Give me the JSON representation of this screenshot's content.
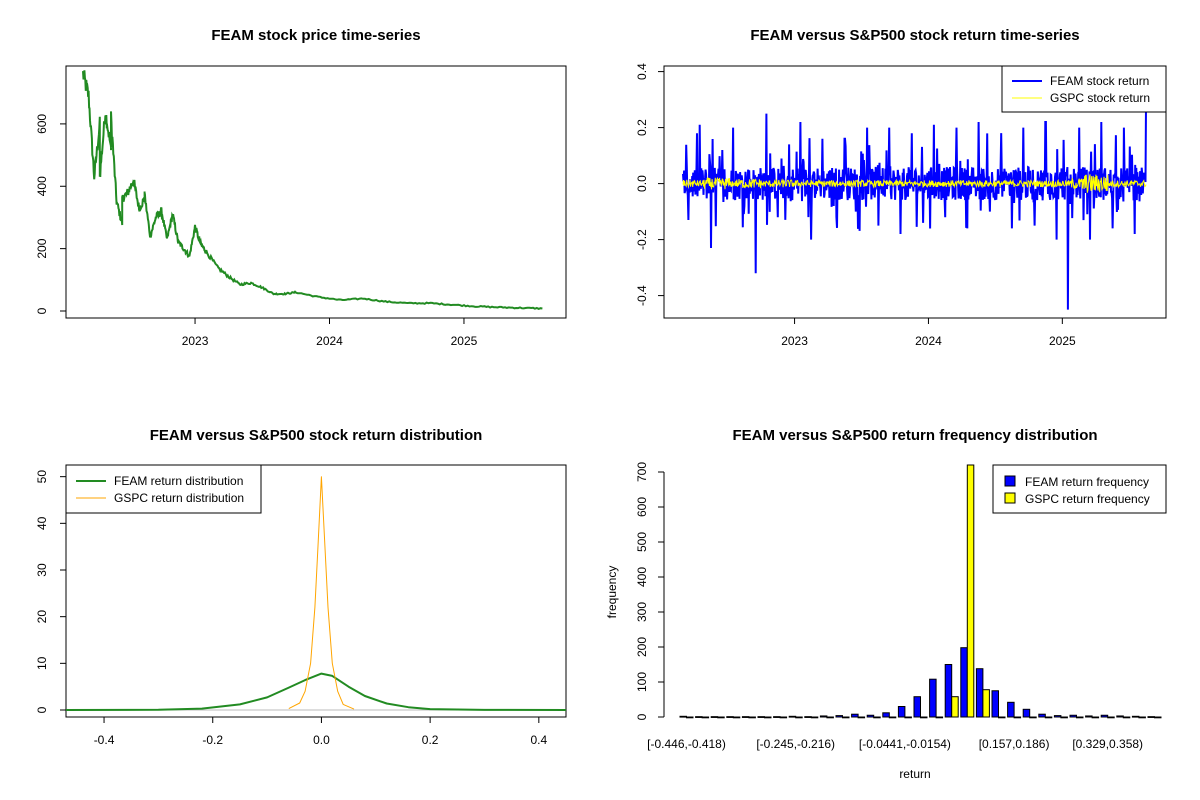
{
  "colors": {
    "feam_price": "#228B22",
    "feam_return": "#0000FF",
    "gspc_return": "#FFFF00",
    "feam_density": "#228B22",
    "gspc_density": "#FFA500",
    "feam_hist": "#0000FF",
    "gspc_hist": "#FFFF00"
  },
  "chart_data": [
    {
      "type": "line",
      "title": "FEAM stock price time-series",
      "xlabel": "",
      "ylabel": "",
      "x_ticks": [
        "2023",
        "2024",
        "2025"
      ],
      "y_ticks": [
        "0",
        "200",
        "400",
        "600"
      ],
      "ylim": [
        0,
        760
      ],
      "grid": false,
      "series": [
        {
          "x": [
            "2022-03",
            "2022-03",
            "2022-04",
            "2022-04",
            "2022-04",
            "2022-05",
            "2022-05",
            "2022-05",
            "2022-06",
            "2022-06",
            "2022-06",
            "2022-07",
            "2022-07",
            "2022-08",
            "2022-08",
            "2022-08",
            "2022-09",
            "2022-09",
            "2022-10",
            "2022-10",
            "2022-11",
            "2022-11",
            "2022-12",
            "2022-12",
            "2023-01",
            "2023-01",
            "2023-02",
            "2023-03",
            "2023-04",
            "2023-05",
            "2023-06",
            "2023-07",
            "2023-08",
            "2023-09",
            "2023-10",
            "2023-12",
            "2024-02",
            "2024-04",
            "2024-06",
            "2024-08",
            "2024-10",
            "2024-12",
            "2025-02",
            "2025-04",
            "2025-06",
            "2025-08"
          ],
          "values": [
            760,
            690,
            430,
            600,
            430,
            640,
            520,
            620,
            350,
            280,
            360,
            380,
            420,
            330,
            360,
            370,
            240,
            300,
            320,
            230,
            310,
            220,
            200,
            175,
            270,
            215,
            190,
            140,
            110,
            85,
            90,
            75,
            55,
            55,
            60,
            45,
            35,
            40,
            30,
            25,
            25,
            20,
            15,
            12,
            10,
            8
          ]
        }
      ]
    },
    {
      "type": "line",
      "title": "FEAM versus S&P500 stock return time-series",
      "xlabel": "",
      "ylabel": "",
      "x_ticks": [
        "2023",
        "2024",
        "2025"
      ],
      "y_ticks": [
        "-0.4",
        "-0.2",
        "0.0",
        "0.2",
        "0.4"
      ],
      "ylim": [
        -0.48,
        0.42
      ],
      "legend": "top-right",
      "grid": false,
      "series": [
        {
          "name": "FEAM stock return",
          "x": [
            "2022-03",
            "2022-04",
            "2022-05",
            "2022-06",
            "2022-07",
            "2022-08",
            "2022-09",
            "2022-10",
            "2022-11",
            "2022-12",
            "2023-01",
            "2023-02",
            "2023-03",
            "2023-04",
            "2023-05",
            "2023-06",
            "2023-07",
            "2023-08",
            "2023-09",
            "2023-10",
            "2023-11",
            "2023-12",
            "2024-01",
            "2024-02",
            "2024-03",
            "2024-04",
            "2024-05",
            "2024-06",
            "2024-07",
            "2024-08",
            "2024-09",
            "2024-10",
            "2024-11",
            "2024-12",
            "2025-01",
            "2025-02",
            "2025-03",
            "2025-04",
            "2025-05",
            "2025-06",
            "2025-07",
            "2025-08"
          ],
          "values": [
            -0.13,
            0.21,
            -0.23,
            0.12,
            0.2,
            -0.08,
            -0.32,
            0.25,
            -0.12,
            0.14,
            0.22,
            -0.2,
            0.16,
            -0.08,
            0.16,
            -0.1,
            0.2,
            -0.15,
            0.2,
            -0.18,
            0.18,
            -0.14,
            0.21,
            -0.12,
            0.2,
            -0.16,
            0.22,
            -0.1,
            0.18,
            -0.16,
            0.2,
            -0.15,
            0.22,
            -0.2,
            -0.45,
            0.2,
            -0.2,
            0.22,
            -0.16,
            0.2,
            -0.18,
            0.28
          ]
        },
        {
          "name": "GSPC stock return",
          "x": [
            "2022-03",
            "2022-06",
            "2022-09",
            "2022-12",
            "2023-03",
            "2023-06",
            "2023-09",
            "2023-12",
            "2024-03",
            "2024-06",
            "2024-09",
            "2024-12",
            "2025-03",
            "2025-04",
            "2025-06",
            "2025-08"
          ],
          "values": [
            0.02,
            -0.03,
            0.025,
            -0.02,
            0.015,
            -0.01,
            0.012,
            -0.01,
            0.01,
            -0.01,
            0.012,
            -0.015,
            -0.03,
            0.05,
            -0.01,
            0.01
          ]
        }
      ]
    },
    {
      "type": "line",
      "title": "FEAM versus S&P500 stock return distribution",
      "xlabel": "",
      "ylabel": "",
      "x_ticks": [
        "-0.4",
        "-0.2",
        "0.0",
        "0.2",
        "0.4"
      ],
      "y_ticks": [
        "0",
        "10",
        "20",
        "30",
        "40",
        "50"
      ],
      "xlim": [
        -0.47,
        0.45
      ],
      "ylim": [
        -1.5,
        52.5
      ],
      "legend": "top-left",
      "grid": false,
      "series": [
        {
          "name": "FEAM return distribution",
          "x": [
            -0.47,
            -0.3,
            -0.22,
            -0.15,
            -0.1,
            -0.06,
            -0.03,
            0.0,
            0.02,
            0.05,
            0.08,
            0.12,
            0.16,
            0.2,
            0.25,
            0.3,
            0.45
          ],
          "values": [
            0,
            0.05,
            0.3,
            1.2,
            2.7,
            4.8,
            6.4,
            7.8,
            7.3,
            5.0,
            3.0,
            1.4,
            0.6,
            0.2,
            0.1,
            0.02,
            0
          ]
        },
        {
          "name": "GSPC return distribution",
          "x": [
            -0.06,
            -0.04,
            -0.03,
            -0.02,
            -0.012,
            -0.006,
            0.0,
            0.006,
            0.012,
            0.02,
            0.03,
            0.04,
            0.06
          ],
          "values": [
            0.3,
            1.5,
            4.0,
            10.0,
            22.0,
            36.0,
            50.0,
            36.0,
            22.0,
            10.0,
            4.0,
            1.2,
            0.2
          ]
        }
      ]
    },
    {
      "type": "bar",
      "title": "FEAM versus S&P500 return frequency distribution",
      "xlabel": "return",
      "ylabel": "frequency",
      "ylim": [
        0,
        720
      ],
      "legend": "top-right",
      "grid": false,
      "tick_labels": [
        {
          "index": 0,
          "label": "[-0.446,-0.418)"
        },
        {
          "index": 7,
          "label": "[-0.245,-0.216)"
        },
        {
          "index": 14,
          "label": "[-0.0441,-0.0154)"
        },
        {
          "index": 21,
          "label": "[0.157,0.186)"
        },
        {
          "index": 27,
          "label": "[0.329,0.358)"
        }
      ],
      "bin_count": 31,
      "series": [
        {
          "name": "FEAM return frequency",
          "values": [
            2,
            1,
            1,
            1,
            1,
            1,
            1,
            2,
            1,
            3,
            4,
            8,
            5,
            12,
            30,
            58,
            108,
            150,
            198,
            138,
            75,
            42,
            22,
            8,
            4,
            5,
            3,
            5,
            3,
            2,
            1
          ]
        },
        {
          "name": "GSPC return frequency",
          "values": [
            0,
            0,
            0,
            0,
            0,
            0,
            0,
            0,
            0,
            0,
            0,
            0,
            0,
            0,
            0,
            0,
            0,
            58,
            720,
            78,
            0,
            0,
            0,
            0,
            0,
            0,
            0,
            0,
            0,
            0,
            0
          ]
        }
      ]
    }
  ]
}
